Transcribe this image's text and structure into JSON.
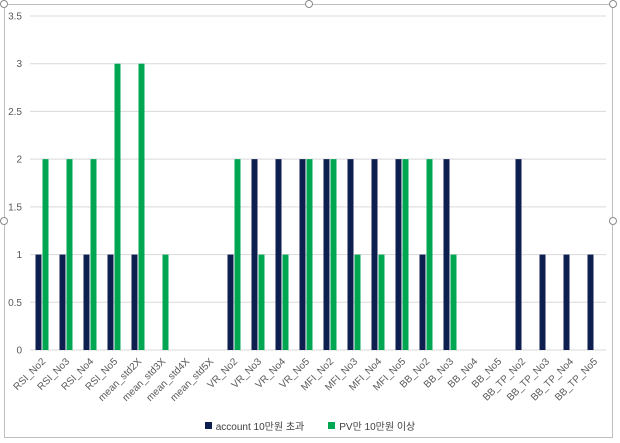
{
  "chart_data": {
    "type": "bar",
    "categories": [
      "RSI_No2",
      "RSI_No3",
      "RSI_No4",
      "RSI_No5",
      "mean_std2X",
      "mean_std3X",
      "mean_std4X",
      "mean_std5X",
      "VR_No2",
      "VR_No3",
      "VR_No4",
      "VR_No5",
      "MFI_No2",
      "MFI_No3",
      "MFI_No4",
      "MFI_No5",
      "BB_No2",
      "BB_No3",
      "BB_No4",
      "BB_No5",
      "BB_TP_No2",
      "BB_TP_No3",
      "BB_TP_No4",
      "BB_TP_No5"
    ],
    "series": [
      {
        "name": "account 10만원 초과",
        "color": "#0d1f4f",
        "values": [
          1,
          1,
          1,
          1,
          1,
          0,
          0,
          0,
          1,
          2,
          2,
          2,
          2,
          2,
          2,
          2,
          1,
          2,
          0,
          0,
          2,
          1,
          1,
          1
        ]
      },
      {
        "name": "PV만 10만원 이상",
        "color": "#00a651",
        "values": [
          2,
          2,
          2,
          3,
          3,
          1,
          0,
          0,
          2,
          1,
          1,
          2,
          2,
          1,
          1,
          2,
          2,
          1,
          0,
          0,
          0,
          0,
          0,
          0
        ]
      }
    ],
    "ylim": [
      0,
      3.5
    ],
    "yticks": [
      "0",
      "0.5",
      "1",
      "1.5",
      "2",
      "2.5",
      "3",
      "3.5"
    ],
    "grid": true,
    "legend_position": "bottom"
  }
}
